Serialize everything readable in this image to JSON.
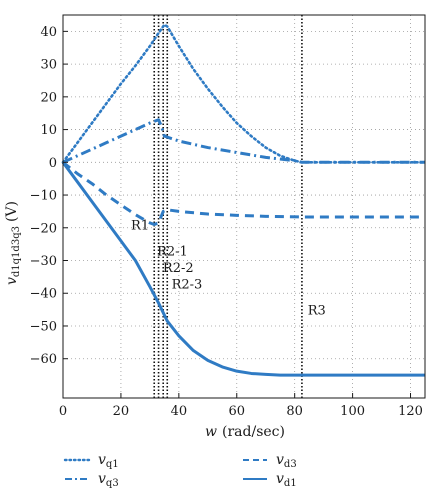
{
  "chart_data": {
    "type": "line",
    "xlabel_var": "w",
    "xlabel_unit": "(rad/sec)",
    "ylabel_var": "v",
    "ylabel_sub": "d1q1d3q3",
    "ylabel_unit": "(V)",
    "xlim": [
      0,
      125
    ],
    "ylim": [
      -72,
      45
    ],
    "xticks": [
      0,
      20,
      40,
      60,
      80,
      100,
      120
    ],
    "yticks": [
      40,
      30,
      20,
      10,
      0,
      -10,
      -20,
      -30,
      -40,
      -50,
      -60
    ],
    "grid": true,
    "grid_style": "dotted",
    "line_color": "#2f7bc4",
    "vlines": [
      {
        "x": 31.5,
        "label": ""
      },
      {
        "x": 33.0,
        "label": ""
      },
      {
        "x": 34.6,
        "label": ""
      },
      {
        "x": 36.0,
        "label": ""
      },
      {
        "x": 82.5,
        "label": ""
      }
    ],
    "annotations": [
      {
        "text": "R1",
        "x": 23.5,
        "y": -20.5
      },
      {
        "text": "R2-1",
        "x": 32.5,
        "y": -28.5
      },
      {
        "text": "R2-2",
        "x": 34.5,
        "y": -33.5
      },
      {
        "text": "R2-3",
        "x": 37.5,
        "y": -38.5
      },
      {
        "text": "R3",
        "x": 84.5,
        "y": -46.5
      }
    ],
    "series": [
      {
        "name": "q1",
        "style": "dotted",
        "x": [
          0,
          5,
          10,
          15,
          20,
          25,
          30,
          33,
          35,
          36,
          40,
          45,
          50,
          55,
          60,
          65,
          70,
          75,
          80,
          82.5,
          85,
          90,
          100,
          110,
          120,
          125
        ],
        "y": [
          0,
          6,
          12,
          18,
          24,
          29.5,
          35.5,
          39.5,
          42,
          41.5,
          35.5,
          28.5,
          22.5,
          17,
          12,
          8,
          4.5,
          2,
          0.5,
          0,
          0,
          0,
          0,
          0,
          0,
          0
        ]
      },
      {
        "name": "q3",
        "style": "dashdot",
        "x": [
          0,
          5,
          10,
          15,
          20,
          25,
          30,
          33,
          34,
          35,
          40,
          50,
          60,
          70,
          80,
          82.5,
          90,
          100,
          110,
          120,
          125
        ],
        "y": [
          0,
          2,
          4,
          6,
          8,
          10,
          12,
          13,
          11,
          8,
          6.5,
          4.5,
          3,
          1.5,
          0.5,
          0,
          0,
          0,
          0,
          0,
          0
        ]
      },
      {
        "name": "d3",
        "style": "dashed",
        "x": [
          0,
          5,
          10,
          15,
          20,
          25,
          30,
          31.5,
          33,
          34.6,
          36,
          40,
          50,
          60,
          70,
          82.5,
          90,
          100,
          110,
          120,
          125
        ],
        "y": [
          0,
          -3.5,
          -6.5,
          -10,
          -13,
          -16,
          -18.5,
          -19,
          -18.5,
          -15,
          -14.5,
          -15,
          -15.8,
          -16.2,
          -16.5,
          -16.7,
          -16.7,
          -16.7,
          -16.7,
          -16.7,
          -16.7
        ]
      },
      {
        "name": "d1",
        "style": "solid",
        "x": [
          0,
          5,
          10,
          15,
          20,
          25,
          30,
          33,
          36,
          40,
          45,
          50,
          55,
          60,
          65,
          70,
          75,
          80,
          82.5,
          90,
          100,
          110,
          120,
          125
        ],
        "y": [
          0,
          -6,
          -12,
          -18,
          -24,
          -30,
          -38,
          -43,
          -48.5,
          -53,
          -57.5,
          -60.5,
          -62.5,
          -63.8,
          -64.5,
          -64.8,
          -65,
          -65,
          -65,
          -65,
          -65,
          -65,
          -65,
          -65
        ]
      }
    ]
  },
  "legend": [
    {
      "var": "v",
      "sub": "q1",
      "style": "dotted"
    },
    {
      "var": "v",
      "sub": "d3",
      "style": "dashed"
    },
    {
      "var": "v",
      "sub": "q3",
      "style": "dashdot"
    },
    {
      "var": "v",
      "sub": "d1",
      "style": "solid"
    }
  ]
}
